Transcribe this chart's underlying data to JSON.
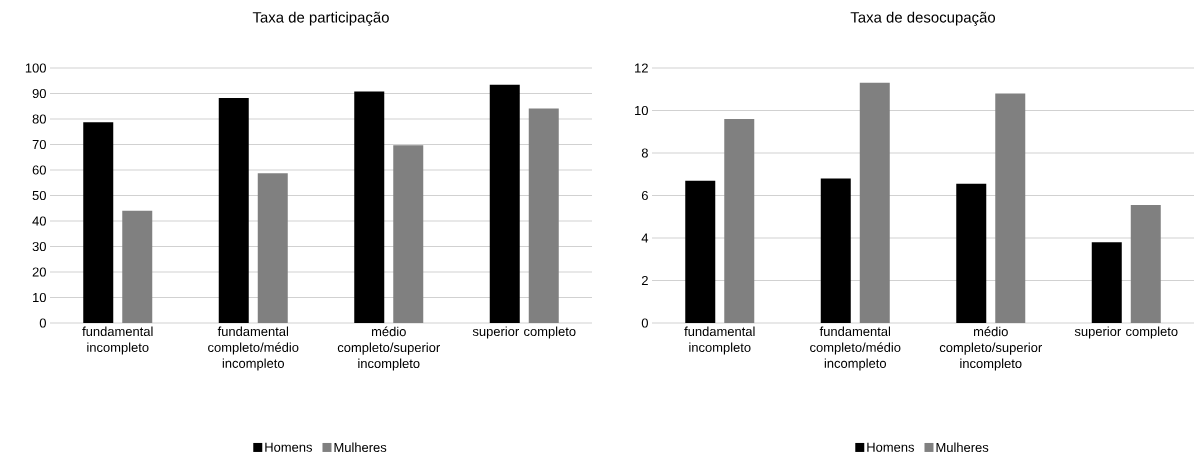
{
  "chart_data": [
    {
      "type": "bar",
      "title": "Taxa de participação",
      "categories": [
        "fundamental incompleto",
        "fundamental completo/médio incompleto",
        "médio completo/superior incompleto",
        "superior completo"
      ],
      "series": [
        {
          "name": "Homens",
          "color": "#000000",
          "values": [
            78.7,
            88.2,
            90.8,
            93.4
          ]
        },
        {
          "name": "Mulheres",
          "color": "#808080",
          "values": [
            44,
            58.7,
            69.7,
            84.1
          ]
        }
      ],
      "ylim": [
        0,
        100
      ],
      "yticks": [
        0,
        10,
        20,
        30,
        40,
        50,
        60,
        70,
        80,
        90,
        100
      ],
      "grid": "y",
      "legend": "bottom"
    },
    {
      "type": "bar",
      "title": "Taxa de desocupação",
      "categories": [
        "fundamental incompleto",
        "fundamental completo/médio incompleto",
        "médio completo/superior incompleto",
        "superior completo"
      ],
      "series": [
        {
          "name": "Homens",
          "color": "#000000",
          "values": [
            6.7,
            6.8,
            6.55,
            3.8
          ]
        },
        {
          "name": "Mulheres",
          "color": "#808080",
          "values": [
            9.6,
            11.3,
            10.8,
            5.55
          ]
        }
      ],
      "ylim": [
        0,
        12
      ],
      "yticks": [
        0,
        2,
        4,
        6,
        8,
        10,
        12
      ],
      "grid": "y",
      "legend": "bottom"
    }
  ]
}
